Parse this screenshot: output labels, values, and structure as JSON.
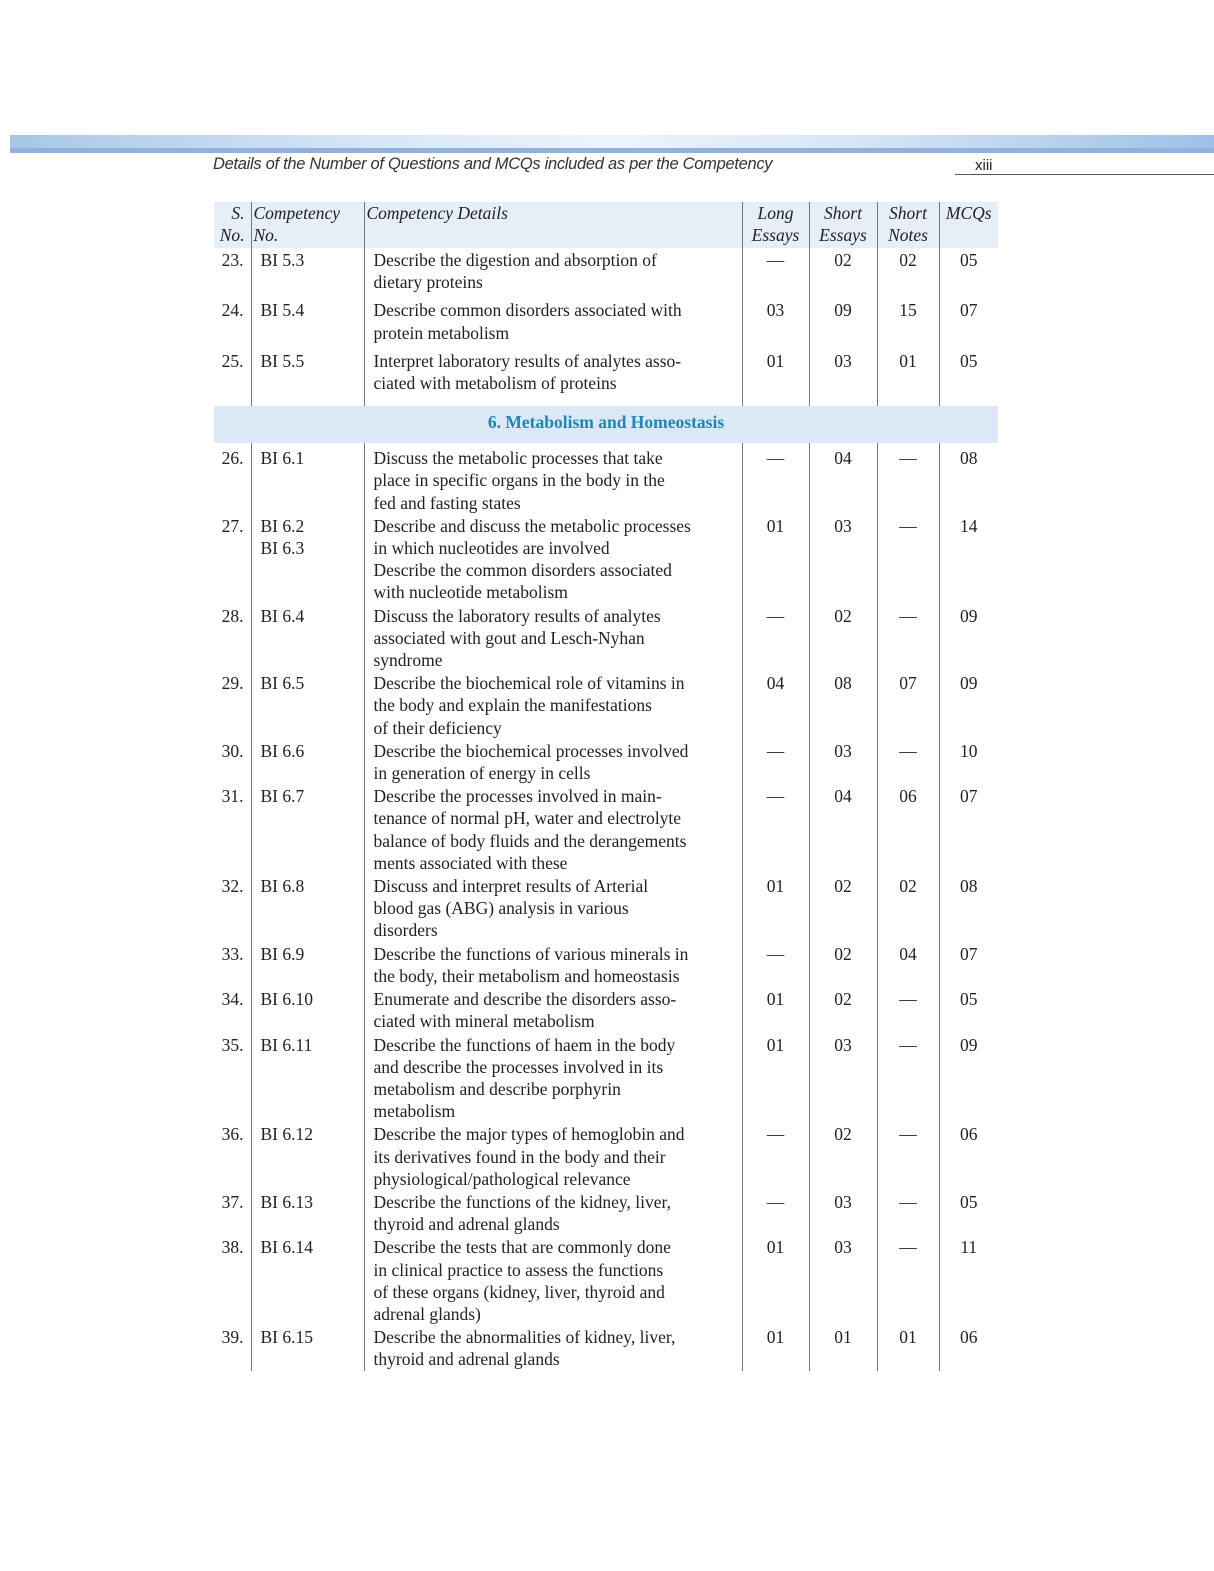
{
  "header": {
    "running_title": "Details of the Number of Questions and MCQs included as per the Competency",
    "page_number": "xiii"
  },
  "colors": {
    "header_band": "#a9c6e8",
    "table_header_bg": "#e6eef8",
    "section_bg": "#dce8f5",
    "section_text": "#1f86b8"
  },
  "table": {
    "columns": [
      "S.\nNo.",
      "Competency\nNo.",
      "Competency Details",
      "Long\nEssays",
      "Short\nEssays",
      "Short\nNotes",
      "MCQs"
    ],
    "rows_a": [
      {
        "sno": "23.",
        "comp": "BI 5.3",
        "desc": "Describe the digestion and absorption of\ndietary proteins",
        "long": "—",
        "short_essays": "02",
        "short_notes": "02",
        "mcqs": "05"
      },
      {
        "sno": "24.",
        "comp": "BI 5.4",
        "desc": "Describe common disorders associated with\nprotein metabolism",
        "long": "03",
        "short_essays": "09",
        "short_notes": "15",
        "mcqs": "07"
      },
      {
        "sno": "25.",
        "comp": "BI 5.5",
        "desc": "Interpret laboratory results of analytes asso-\nciated with metabolism of proteins",
        "long": "01",
        "short_essays": "03",
        "short_notes": "01",
        "mcqs": "05"
      }
    ],
    "section": "6. Metabolism and Homeostasis",
    "rows_b": [
      {
        "sno": "26.",
        "comp": "BI 6.1",
        "desc": "Discuss the metabolic processes that take\nplace in specific organs in the body in the\nfed and fasting states",
        "long": "—",
        "short_essays": "04",
        "short_notes": "—",
        "mcqs": "08"
      },
      {
        "sno": "27.",
        "comp": "BI 6.2\nBI 6.3",
        "desc": "Describe and discuss the metabolic processes\nin which nucleotides are involved\nDescribe the common disorders associated\nwith nucleotide metabolism",
        "long": "01",
        "short_essays": "03",
        "short_notes": "—",
        "mcqs": "14"
      },
      {
        "sno": "28.",
        "comp": "BI 6.4",
        "desc": "Discuss the laboratory results of analytes\nassociated with gout and Lesch-Nyhan\nsyndrome",
        "long": "—",
        "short_essays": "02",
        "short_notes": "—",
        "mcqs": "09"
      },
      {
        "sno": "29.",
        "comp": "BI 6.5",
        "desc": "Describe the biochemical role of vitamins in\nthe body and explain the manifestations\nof their deficiency",
        "long": "04",
        "short_essays": "08",
        "short_notes": "07",
        "mcqs": "09"
      },
      {
        "sno": "30.",
        "comp": "BI 6.6",
        "desc": "Describe the biochemical processes involved\nin generation of energy in cells",
        "long": "—",
        "short_essays": "03",
        "short_notes": "—",
        "mcqs": "10"
      },
      {
        "sno": "31.",
        "comp": "BI 6.7",
        "desc": "Describe the processes involved in main-\ntenance of normal pH, water and electrolyte\nbalance of body fluids and the derangements\nments associated with these",
        "long": "—",
        "short_essays": "04",
        "short_notes": "06",
        "mcqs": "07"
      },
      {
        "sno": "32.",
        "comp": "BI 6.8",
        "desc": "Discuss and interpret results of Arterial\nblood gas (ABG) analysis in various\ndisorders",
        "long": "01",
        "short_essays": "02",
        "short_notes": "02",
        "mcqs": "08"
      },
      {
        "sno": "33.",
        "comp": "BI 6.9",
        "desc": "Describe the functions of various minerals in\nthe body, their metabolism and homeostasis",
        "long": "—",
        "short_essays": "02",
        "short_notes": "04",
        "mcqs": "07"
      },
      {
        "sno": "34.",
        "comp": "BI 6.10",
        "desc": "Enumerate and describe the disorders asso-\nciated with mineral metabolism",
        "long": "01",
        "short_essays": "02",
        "short_notes": "—",
        "mcqs": "05"
      },
      {
        "sno": "35.",
        "comp": "BI 6.11",
        "desc": "Describe the functions of haem in the body\nand describe the processes involved in its\nmetabolism and describe porphyrin\nmetabolism",
        "long": "01",
        "short_essays": "03",
        "short_notes": "—",
        "mcqs": "09"
      },
      {
        "sno": "36.",
        "comp": "BI 6.12",
        "desc": "Describe the major types of hemoglobin and\nits derivatives found in the body and their\nphysiological/pathological relevance",
        "long": "—",
        "short_essays": "02",
        "short_notes": "—",
        "mcqs": "06"
      },
      {
        "sno": "37.",
        "comp": "BI 6.13",
        "desc": "Describe the functions of the kidney, liver,\nthyroid and adrenal glands",
        "long": "—",
        "short_essays": "03",
        "short_notes": "—",
        "mcqs": "05"
      },
      {
        "sno": "38.",
        "comp": "BI 6.14",
        "desc": "Describe the tests that are commonly done\nin clinical practice to assess the functions\nof these organs (kidney, liver, thyroid and\nadrenal glands)",
        "long": "01",
        "short_essays": "03",
        "short_notes": "—",
        "mcqs": "11"
      },
      {
        "sno": "39.",
        "comp": "BI 6.15",
        "desc": "Describe the abnormalities of kidney, liver,\nthyroid and adrenal glands",
        "long": "01",
        "short_essays": "01",
        "short_notes": "01",
        "mcqs": "06"
      }
    ]
  }
}
